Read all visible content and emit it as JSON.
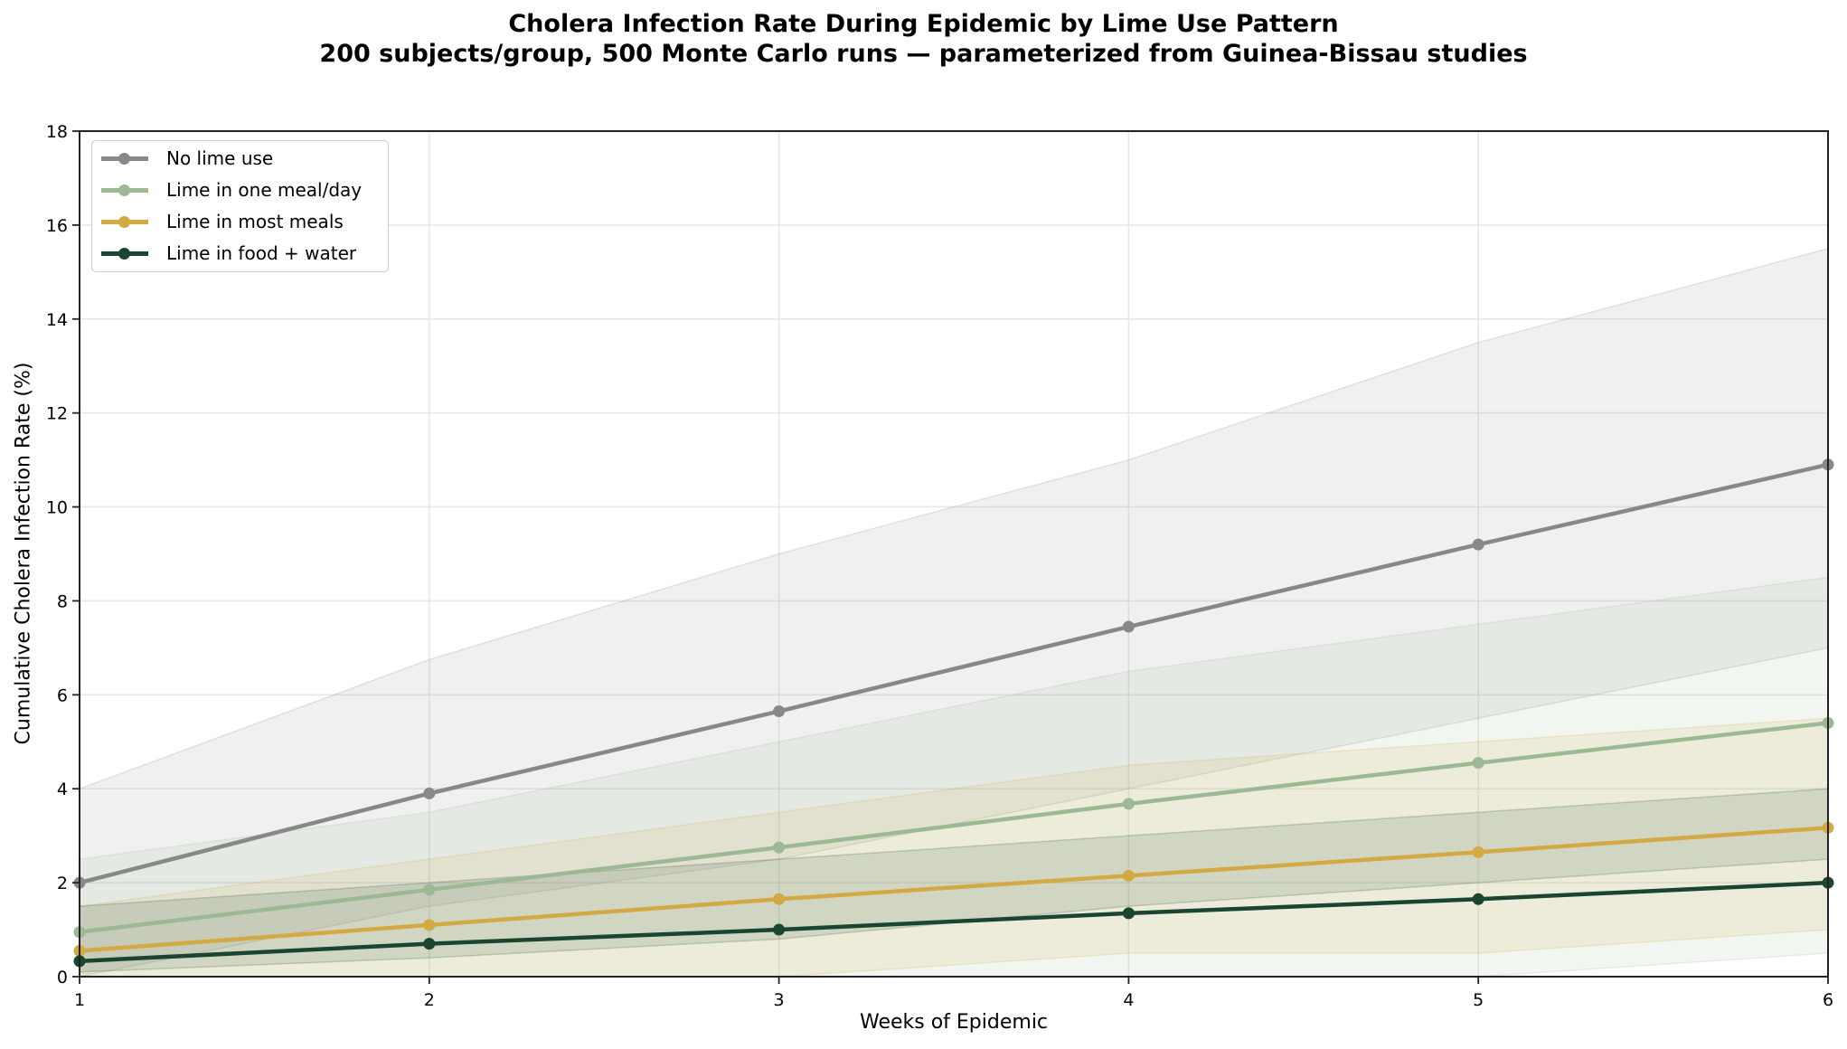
{
  "title": {
    "line1": "Cholera Infection Rate During Epidemic by Lime Use Pattern",
    "line2": "200 subjects/group, 500 Monte Carlo runs — parameterized from Guinea-Bissau studies"
  },
  "axes": {
    "xlabel": "Weeks of Epidemic",
    "ylabel": "Cumulative Cholera Infection Rate (%)"
  },
  "legend": [
    {
      "label": "No lime use",
      "color": "#888888"
    },
    {
      "label": "Lime in one meal/day",
      "color": "#9db894"
    },
    {
      "label": "Lime in most meals",
      "color": "#d4a843"
    },
    {
      "label": "Lime in food + water",
      "color": "#1a4530"
    }
  ],
  "chart_data": {
    "type": "line",
    "title": "Cholera Infection Rate During Epidemic by Lime Use Pattern\n200 subjects/group, 500 Monte Carlo runs — parameterized from Guinea-Bissau studies",
    "xlabel": "Weeks of Epidemic",
    "ylabel": "Cumulative Cholera Infection Rate (%)",
    "x": [
      1,
      2,
      3,
      4,
      5,
      6
    ],
    "xticks": [
      "1",
      "2",
      "3",
      "4",
      "5",
      "6"
    ],
    "yticks": [
      "0",
      "2",
      "4",
      "6",
      "8",
      "10",
      "12",
      "14",
      "16",
      "18"
    ],
    "xlim": [
      1,
      6
    ],
    "ylim": [
      0,
      18
    ],
    "grid": true,
    "legend_position": "upper left",
    "series": [
      {
        "name": "No lime use",
        "color": "#888888",
        "values": [
          2.0,
          3.9,
          5.65,
          7.45,
          9.2,
          10.9
        ],
        "band_upper": [
          4.0,
          6.75,
          9.0,
          11.0,
          13.5,
          15.5
        ],
        "band_lower": [
          0.0,
          1.5,
          2.5,
          4.0,
          5.5,
          7.0
        ]
      },
      {
        "name": "Lime in one meal/day",
        "color": "#9db894",
        "values": [
          0.95,
          1.85,
          2.75,
          3.68,
          4.55,
          5.4
        ],
        "band_upper": [
          2.5,
          3.5,
          5.0,
          6.5,
          7.5,
          8.5
        ],
        "band_lower": [
          0.0,
          0.0,
          0.0,
          0.0,
          0.0,
          0.5
        ]
      },
      {
        "name": "Lime in most meals",
        "color": "#d4a843",
        "values": [
          0.55,
          1.1,
          1.65,
          2.15,
          2.65,
          3.17
        ],
        "band_upper": [
          1.5,
          2.5,
          3.5,
          4.5,
          5.0,
          5.5
        ],
        "band_lower": [
          0.0,
          0.0,
          0.0,
          0.5,
          0.5,
          1.0
        ]
      },
      {
        "name": "Lime in food + water",
        "color": "#1a4530",
        "values": [
          0.33,
          0.7,
          1.0,
          1.35,
          1.65,
          2.0
        ],
        "band_upper": [
          1.5,
          2.0,
          2.5,
          3.0,
          3.5,
          4.0
        ],
        "band_lower": [
          0.1,
          0.4,
          0.8,
          1.5,
          2.0,
          2.5
        ]
      }
    ]
  }
}
